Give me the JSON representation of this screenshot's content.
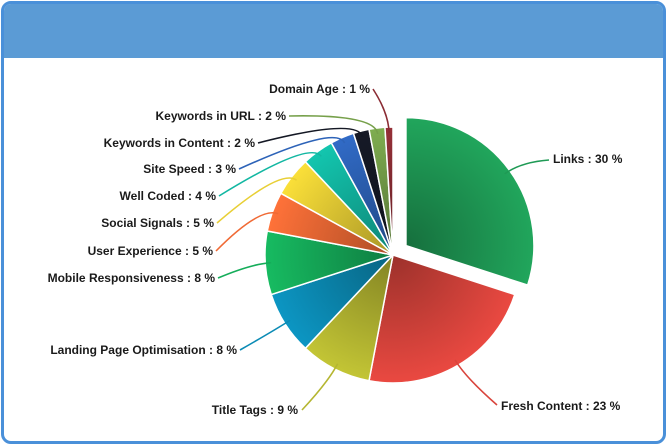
{
  "chart_data": {
    "type": "pie",
    "exploded": "Links",
    "slices": [
      {
        "label": "Links : 30 %",
        "value": 30,
        "color": "#1f9a55"
      },
      {
        "label": "Fresh Content : 23 %",
        "value": 23,
        "color": "#d9443c"
      },
      {
        "label": "Title Tags : 9 %",
        "value": 9,
        "color": "#b5b631"
      },
      {
        "label": "Landing Page Optimisation : 8 %",
        "value": 8,
        "color": "#0b8bb5"
      },
      {
        "label": "Mobile Responsiveness : 8 %",
        "value": 8,
        "color": "#15ad5a"
      },
      {
        "label": "User Experience : 5 %",
        "value": 5,
        "color": "#f06a35"
      },
      {
        "label": "Social Signals : 5 %",
        "value": 5,
        "color": "#e8cf35"
      },
      {
        "label": "Well Coded : 4 %",
        "value": 4,
        "color": "#12b7a2"
      },
      {
        "label": "Site Speed : 3 %",
        "value": 3,
        "color": "#2d63b8"
      },
      {
        "label": "Keywords in Content : 2 %",
        "value": 2,
        "color": "#141824"
      },
      {
        "label": "Keywords in URL : 2 %",
        "value": 2,
        "color": "#76a04a"
      },
      {
        "label": "Domain Age : 1 %",
        "value": 1,
        "color": "#8b2c34"
      }
    ]
  }
}
